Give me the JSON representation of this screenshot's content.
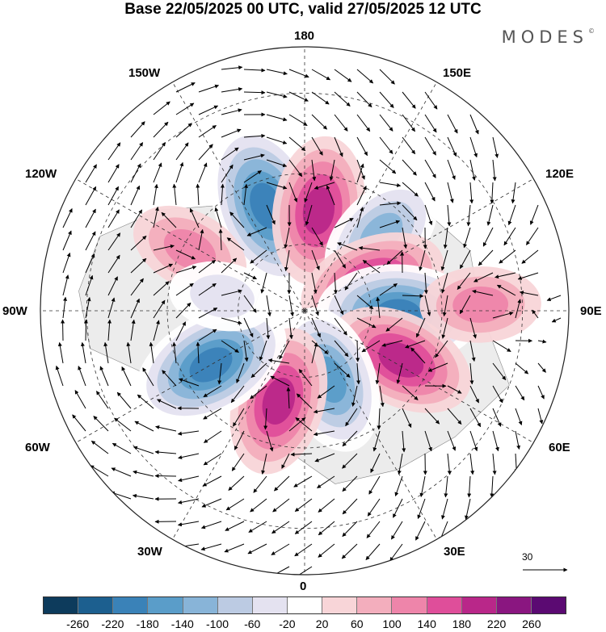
{
  "title": "Base 22/05/2025 00 UTC, valid 27/05/2025 12 UTC",
  "brand": "MODES",
  "brand_mark": "©",
  "meridian_labels": {
    "top": "180",
    "bottom": "0",
    "left": "90W",
    "right": "90E",
    "upper_left": "150W",
    "upper_right": "150E",
    "left_upper": "120W",
    "right_upper": "120E",
    "left_lower": "60W",
    "right_lower": "60E",
    "lower_left": "30W",
    "lower_right": "30E"
  },
  "reference_vector": "30",
  "colorbar": {
    "colors": [
      "#0d3b5c",
      "#1c5f8f",
      "#3a82b8",
      "#5a9dc9",
      "#88b4d8",
      "#bccbe3",
      "#e4e2f0",
      "#ffffff",
      "#f8d5d8",
      "#f3aebd",
      "#ee85aa",
      "#df4e9a",
      "#b92789",
      "#8a1680",
      "#5b0a72"
    ],
    "ticks": [
      "-260",
      "-220",
      "-180",
      "-140",
      "-100",
      "-60",
      "-20",
      "20",
      "60",
      "100",
      "140",
      "180",
      "220",
      "260"
    ]
  },
  "anomaly_centers": [
    {
      "lon_deg": -160,
      "colat_deg": 33,
      "value": -200
    },
    {
      "lon_deg": 172,
      "colat_deg": 30,
      "value": 140
    },
    {
      "lon_deg": 135,
      "colat_deg": 32,
      "value": -100
    },
    {
      "lon_deg": 112,
      "colat_deg": 22,
      "value": 140
    },
    {
      "lon_deg": 88,
      "colat_deg": 28,
      "value": -180
    },
    {
      "lon_deg": 63,
      "colat_deg": 32,
      "value": 140
    },
    {
      "lon_deg": 20,
      "colat_deg": 22,
      "value": -140
    },
    {
      "lon_deg": -16,
      "colat_deg": 28,
      "value": 140
    },
    {
      "lon_deg": -60,
      "colat_deg": 32,
      "value": -180
    },
    {
      "lon_deg": -118,
      "colat_deg": 38,
      "value": 60
    },
    {
      "lon_deg": 92,
      "colat_deg": 50,
      "value": 60
    },
    {
      "lon_deg": -100,
      "colat_deg": 25,
      "value": -20
    }
  ]
}
